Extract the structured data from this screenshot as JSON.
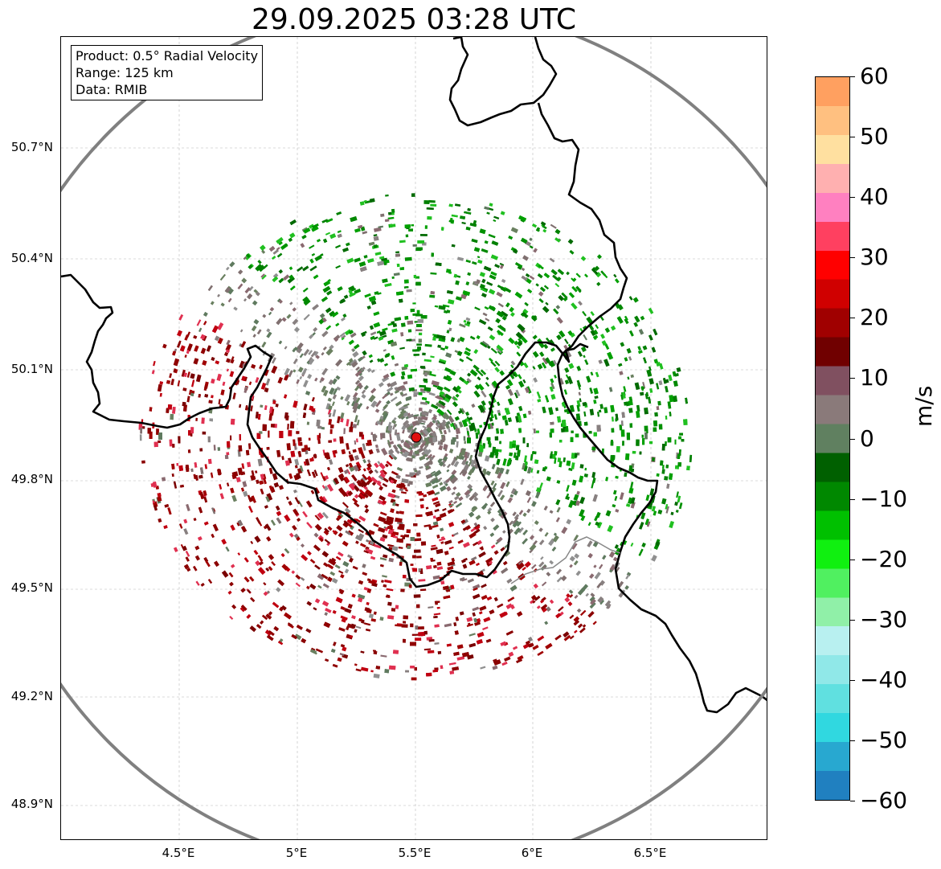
{
  "title": "29.09.2025 03:28 UTC",
  "info": {
    "product": "Product: 0.5° Radial Velocity",
    "range": "Range: 125 km",
    "data": "Data: RMIB"
  },
  "axes": {
    "y_ticks": [
      "50.7°N",
      "50.4°N",
      "50.1°N",
      "49.8°N",
      "49.5°N",
      "49.2°N",
      "48.9°N"
    ],
    "x_ticks": [
      "4.5°E",
      "5°E",
      "5.5°E",
      "6°E",
      "6.5°E"
    ]
  },
  "colorbar": {
    "label": "m/s",
    "ticks": [
      "60",
      "50",
      "40",
      "30",
      "20",
      "10",
      "0",
      "−10",
      "−20",
      "−30",
      "−40",
      "−50",
      "−60"
    ],
    "min": -60,
    "max": 60,
    "colors": [
      "#2080c0",
      "#28a8d0",
      "#30d8e0",
      "#60e0e0",
      "#90e8e8",
      "#b8f0f0",
      "#90f0a8",
      "#50f060",
      "#10f010",
      "#00c000",
      "#008800",
      "#006000",
      "#608060",
      "#8a7a7a",
      "#805060",
      "#700000",
      "#a00000",
      "#d00000",
      "#ff0000",
      "#ff4060",
      "#ff80c0",
      "#ffb0b0",
      "#ffe0a0",
      "#ffc080",
      "#ffa060"
    ]
  },
  "radar_site": {
    "lat": 49.914,
    "lon": 5.505
  },
  "colors": {
    "approaching_dominant": "#008000",
    "receding_dominant": "#8b0000",
    "near_zero": "#888080",
    "site_marker": "#e01010",
    "range_ring": "#808080",
    "border": "#000000"
  }
}
